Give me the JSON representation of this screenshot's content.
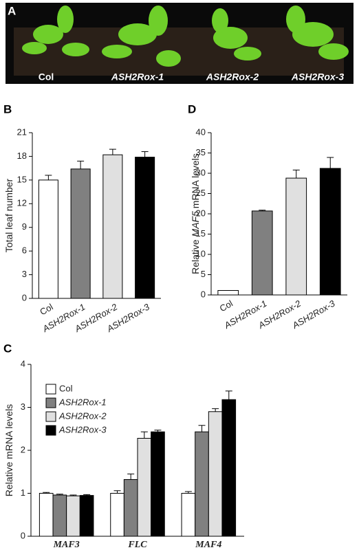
{
  "photo": {
    "label": "A",
    "captions": [
      "Col",
      "ASH2Rox-1",
      "ASH2Rox-2",
      "ASH2Rox-3"
    ]
  },
  "chart_data": [
    {
      "type": "bar",
      "label": "B",
      "y_label": [
        "Total leaf number"
      ],
      "categories": [
        "Col",
        "ASH2Rox-1",
        "ASH2Rox-2",
        "ASH2Rox-3"
      ],
      "values": [
        15.0,
        16.4,
        18.2,
        17.9
      ],
      "errors": [
        0.6,
        1.0,
        0.7,
        0.7
      ],
      "colors": [
        "#ffffff",
        "#808080",
        "#e0e0e0",
        "#000000"
      ],
      "ylim": [
        0,
        21
      ],
      "yticks": [
        0,
        3,
        6,
        9,
        12,
        15,
        18,
        21
      ]
    },
    {
      "type": "grouped_bar",
      "label": "C",
      "y_label": [
        "Relative mRNA levels"
      ],
      "categories": [
        "MAF3",
        "FLC",
        "MAF4"
      ],
      "series": [
        {
          "name": "Col",
          "color": "#ffffff",
          "values": [
            1.0,
            1.0,
            1.0
          ],
          "errors": [
            0.02,
            0.06,
            0.04
          ]
        },
        {
          "name": "ASH2Rox-1",
          "color": "#808080",
          "values": [
            0.96,
            1.32,
            2.43
          ],
          "errors": [
            0.02,
            0.13,
            0.15
          ]
        },
        {
          "name": "ASH2Rox-2",
          "color": "#e0e0e0",
          "values": [
            0.94,
            2.28,
            2.9
          ],
          "errors": [
            0.02,
            0.15,
            0.07
          ]
        },
        {
          "name": "ASH2Rox-3",
          "color": "#000000",
          "values": [
            0.95,
            2.43,
            3.18
          ],
          "errors": [
            0.02,
            0.04,
            0.2
          ]
        }
      ],
      "ylim": [
        0,
        4
      ],
      "yticks": [
        0,
        1,
        2,
        3,
        4
      ],
      "legend": "upper left"
    },
    {
      "type": "bar",
      "label": "D",
      "y_label": [
        "Relative ",
        "MAF5",
        " mRNA levels"
      ],
      "categories": [
        "Col",
        "ASH2Rox-1",
        "ASH2Rox-2",
        "ASH2Rox-3"
      ],
      "values": [
        1.1,
        20.7,
        28.8,
        31.2
      ],
      "errors": [
        0.0,
        0.2,
        2.0,
        2.7
      ],
      "colors": [
        "#ffffff",
        "#808080",
        "#e0e0e0",
        "#000000"
      ],
      "ylim": [
        0,
        40
      ],
      "yticks": [
        0,
        5,
        10,
        15,
        20,
        25,
        30,
        35,
        40
      ]
    }
  ]
}
